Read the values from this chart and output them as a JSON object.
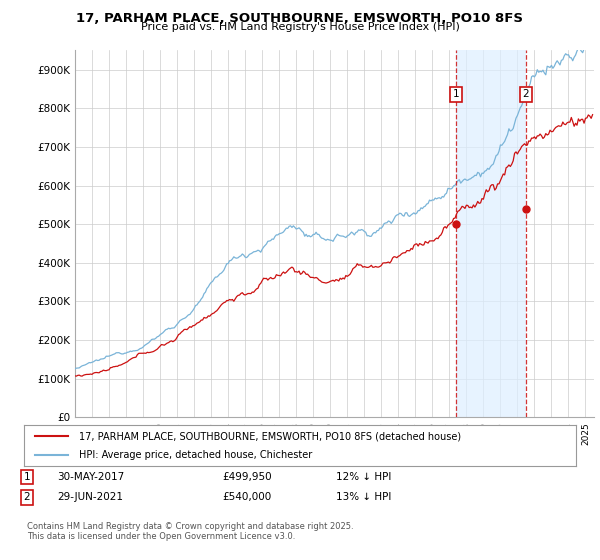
{
  "title": "17, PARHAM PLACE, SOUTHBOURNE, EMSWORTH, PO10 8FS",
  "subtitle": "Price paid vs. HM Land Registry's House Price Index (HPI)",
  "ylim": [
    0,
    950000
  ],
  "yticks": [
    0,
    100000,
    200000,
    300000,
    400000,
    500000,
    600000,
    700000,
    800000,
    900000
  ],
  "ytick_labels": [
    "£0",
    "£100K",
    "£200K",
    "£300K",
    "£400K",
    "£500K",
    "£600K",
    "£700K",
    "£800K",
    "£900K"
  ],
  "hpi_color": "#7ab4d8",
  "price_color": "#cc1111",
  "shade_color": "#ddeeff",
  "marker1_x": 2017.41,
  "marker2_x": 2021.49,
  "marker1_price_y": 499950,
  "marker2_price_y": 540000,
  "marker1_date": "30-MAY-2017",
  "marker1_price": "£499,950",
  "marker1_hpi": "12% ↓ HPI",
  "marker2_date": "29-JUN-2021",
  "marker2_price": "£540,000",
  "marker2_hpi": "13% ↓ HPI",
  "legend_line1": "17, PARHAM PLACE, SOUTHBOURNE, EMSWORTH, PO10 8FS (detached house)",
  "legend_line2": "HPI: Average price, detached house, Chichester",
  "footer": "Contains HM Land Registry data © Crown copyright and database right 2025.\nThis data is licensed under the Open Government Licence v3.0.",
  "background_color": "#ffffff",
  "grid_color": "#cccccc",
  "xlim_start": 1995,
  "xlim_end": 2025.5
}
